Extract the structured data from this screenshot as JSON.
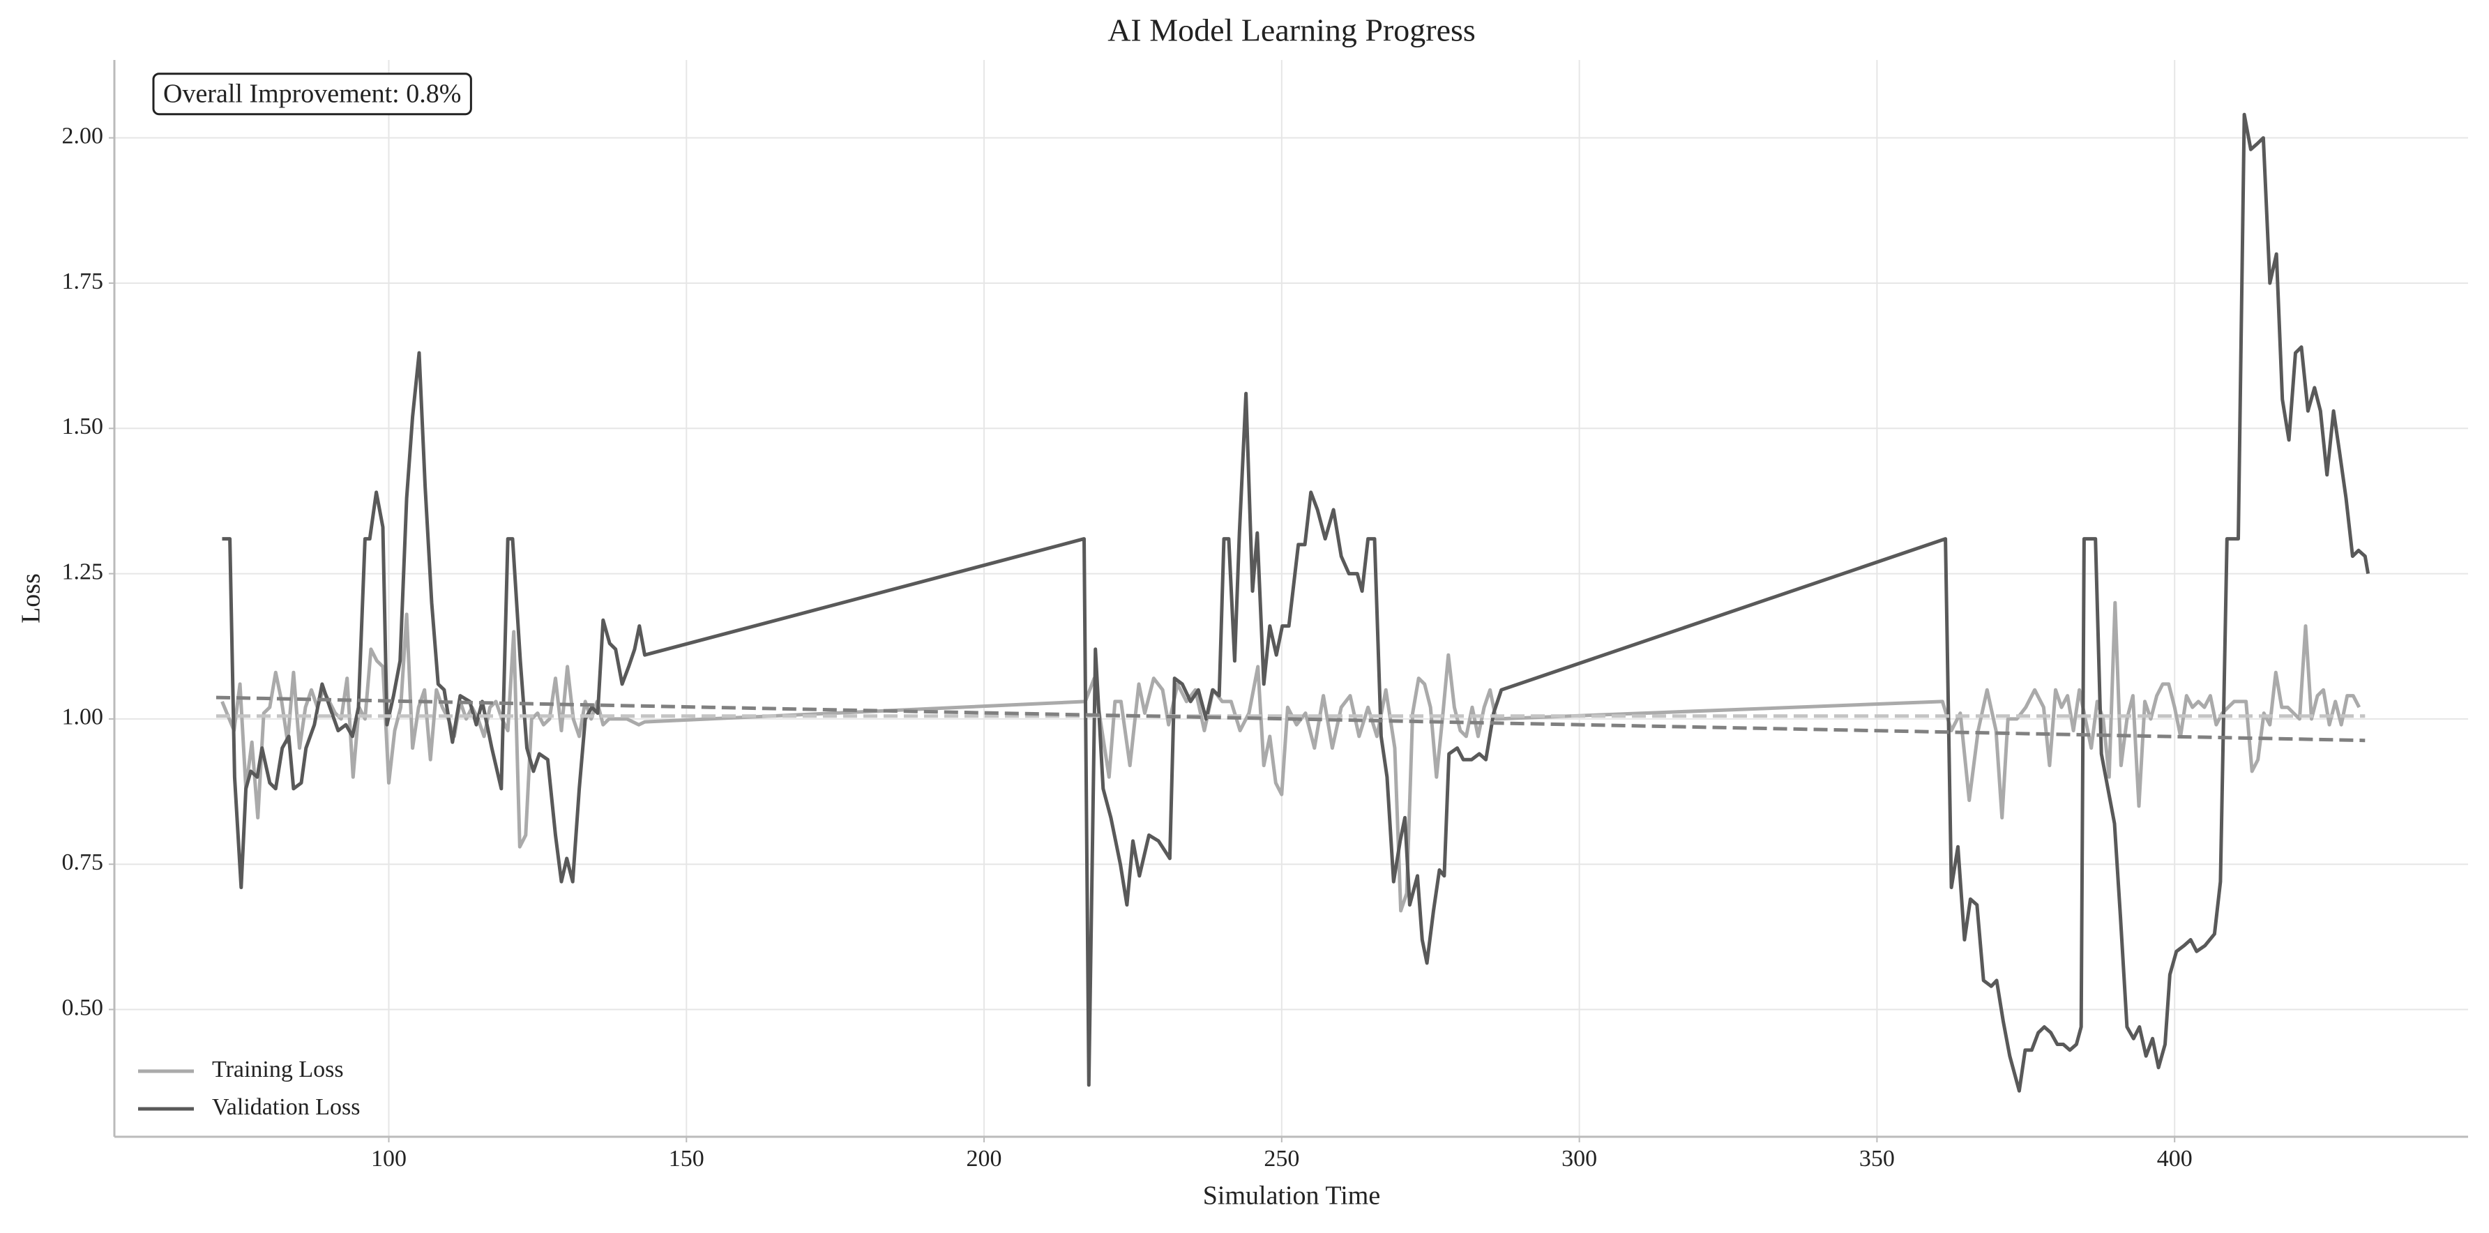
{
  "chart_data": {
    "type": "line",
    "title": "AI Model Learning Progress",
    "xlabel": "Simulation Time",
    "ylabel": "Loss",
    "annotation": "Overall Improvement: 0.8%",
    "xlim": [
      53.9,
      449.3
    ],
    "ylim": [
      0.281,
      2.134
    ],
    "xticks": [
      100,
      150,
      200,
      250,
      300,
      350,
      400
    ],
    "yticks": [
      {
        "value": 0.5,
        "label": "0.50"
      },
      0.75,
      {
        "value": 1.0,
        "label": "1.00"
      },
      1.25,
      {
        "value": 1.5,
        "label": "1.50"
      },
      1.75,
      {
        "value": 2.0,
        "label": "2.00"
      }
    ],
    "grid": true,
    "legend": "lower left",
    "series": [
      {
        "name": "Training Loss",
        "color": "#aaaaaa",
        "x": [
          72,
          74,
          75,
          76,
          77,
          78,
          79,
          80,
          81,
          82,
          83,
          84,
          85,
          86,
          87,
          88,
          89,
          91,
          92,
          93,
          94,
          95,
          96,
          97,
          98,
          99,
          100,
          101,
          102,
          103,
          104,
          105,
          106,
          107,
          108,
          109,
          110,
          111,
          112,
          113,
          114,
          115,
          116,
          117,
          118,
          119,
          120,
          121,
          122,
          123,
          124,
          125,
          126,
          127,
          128,
          129,
          130,
          131,
          132,
          133,
          134,
          135,
          136,
          137,
          140,
          142,
          143,
          217,
          218.5,
          219.5,
          221,
          222,
          223,
          224.5,
          226,
          227,
          228.5,
          230,
          231,
          232.5,
          234,
          235.5,
          237,
          238.5,
          240,
          241.5,
          243,
          244.5,
          246,
          247,
          248,
          249,
          250,
          251,
          252.5,
          254,
          255.5,
          257,
          258.5,
          260,
          261.5,
          263,
          264.5,
          266,
          267.5,
          269,
          270,
          271,
          272,
          273,
          274,
          275,
          276,
          277,
          278,
          279,
          280,
          281,
          282,
          283,
          284,
          285,
          286,
          361,
          362.5,
          364,
          365.5,
          367,
          368.5,
          370,
          371,
          372,
          373.5,
          375,
          376.5,
          378,
          379,
          380,
          381,
          382,
          383,
          384,
          385,
          386,
          387,
          388,
          389,
          390,
          391,
          392,
          393,
          394,
          395,
          396,
          397,
          398,
          399,
          400,
          401,
          402,
          403,
          404,
          405,
          406,
          407,
          408,
          409,
          410,
          411,
          412,
          413,
          414,
          415,
          416,
          417,
          418,
          419,
          420,
          421,
          422,
          423,
          424,
          425,
          426,
          427,
          428,
          429,
          430,
          431
        ],
        "values": [
          1.03,
          0.98,
          1.06,
          0.88,
          0.96,
          0.83,
          1.01,
          1.02,
          1.08,
          1.03,
          0.96,
          1.08,
          0.95,
          1.02,
          1.05,
          1.02,
          1.05,
          1.01,
          1.0,
          1.07,
          0.9,
          1.02,
          1.0,
          1.12,
          1.1,
          1.09,
          0.89,
          0.98,
          1.02,
          1.18,
          0.95,
          1.02,
          1.05,
          0.93,
          1.05,
          1.02,
          1.0,
          0.97,
          1.03,
          1.0,
          1.02,
          1.0,
          0.97,
          1.02,
          1.03,
          1.0,
          0.98,
          1.15,
          0.78,
          0.8,
          1.0,
          1.01,
          0.99,
          1.0,
          1.07,
          0.98,
          1.09,
          1.0,
          0.97,
          1.03,
          1.0,
          1.03,
          0.99,
          1.0,
          1.0,
          0.99,
          0.995,
          1.03,
          1.07,
          1.0,
          0.9,
          1.03,
          1.03,
          0.92,
          1.06,
          1.01,
          1.07,
          1.05,
          0.99,
          1.06,
          1.03,
          1.05,
          0.98,
          1.05,
          1.03,
          1.03,
          0.98,
          1.01,
          1.09,
          0.92,
          0.97,
          0.89,
          0.87,
          1.02,
          0.99,
          1.01,
          0.95,
          1.04,
          0.95,
          1.02,
          1.04,
          0.97,
          1.02,
          0.97,
          1.05,
          0.95,
          0.67,
          0.7,
          1.01,
          1.07,
          1.06,
          1.02,
          0.9,
          1.0,
          1.11,
          1.02,
          0.98,
          0.97,
          1.02,
          0.97,
          1.02,
          1.05,
          1.0,
          1.03,
          0.98,
          1.01,
          0.86,
          0.98,
          1.05,
          0.98,
          0.83,
          1.0,
          1.0,
          1.02,
          1.05,
          1.02,
          0.92,
          1.05,
          1.02,
          1.04,
          0.98,
          1.05,
          1.0,
          0.95,
          1.03,
          1.0,
          0.9,
          1.2,
          0.92,
          1.0,
          1.04,
          0.85,
          1.03,
          1.0,
          1.04,
          1.06,
          1.06,
          1.02,
          0.97,
          1.04,
          1.02,
          1.03,
          1.02,
          1.04,
          0.99,
          1.01,
          1.02,
          1.03,
          1.03,
          1.03,
          0.91,
          0.93,
          1.01,
          0.99,
          1.08,
          1.02,
          1.02,
          1.01,
          1.0,
          1.16,
          1.0,
          1.04,
          1.05,
          0.99,
          1.03,
          0.99,
          1.04,
          1.04,
          1.02
        ]
      },
      {
        "name": "Validation Loss",
        "color": "#595959",
        "x": [
          72,
          73.3,
          74.1,
          75.2,
          76,
          76.8,
          77.9,
          78.7,
          80,
          81,
          82.1,
          83.2,
          84,
          85.3,
          86.1,
          87.5,
          88.8,
          90.1,
          91.5,
          92.8,
          93.9,
          94.9,
          96,
          96.8,
          97.9,
          99,
          99.7,
          100.8,
          101.9,
          103,
          104,
          105.1,
          106.1,
          107.2,
          108.3,
          109.3,
          110.7,
          112,
          113.6,
          114.7,
          115.7,
          117.3,
          118.9,
          120,
          120.8,
          122.1,
          123.2,
          124.3,
          125.3,
          126.7,
          128,
          129,
          129.9,
          130.9,
          132,
          133,
          134.1,
          135.1,
          136,
          137.1,
          138.1,
          139.2,
          140.3,
          141.3,
          142.1,
          143,
          216.8,
          217.6,
          218.7,
          220,
          221.3,
          222.9,
          224,
          225,
          226.1,
          227.7,
          229.3,
          231.2,
          232,
          233.3,
          234.7,
          236,
          237.3,
          238.4,
          239.5,
          240.3,
          241.1,
          242.1,
          242.9,
          244,
          245.1,
          245.9,
          247,
          248,
          249.1,
          250.1,
          251.2,
          252.8,
          253.9,
          254.9,
          256,
          257.3,
          258.7,
          260,
          261.3,
          262.7,
          263.5,
          264.5,
          265.6,
          266.7,
          267.7,
          268.8,
          269.9,
          270.7,
          271.5,
          272.8,
          273.6,
          274.4,
          275.5,
          276.5,
          277.3,
          278.1,
          279.5,
          280.5,
          281.9,
          283.2,
          284.3,
          285.6,
          286.9,
          361.5,
          362.5,
          363.6,
          364.7,
          365.7,
          366.8,
          367.9,
          369.2,
          370.1,
          371.2,
          372.3,
          373.9,
          374.9,
          376,
          377.1,
          378.1,
          379.2,
          380.3,
          381.3,
          382.4,
          383.5,
          384.3,
          384.8,
          386.7,
          387.7,
          388.8,
          389.9,
          390.9,
          392,
          393.1,
          394.1,
          395.2,
          396.3,
          397.3,
          398.4,
          399.2,
          400.3,
          401.6,
          402.7,
          403.7,
          405.1,
          406.7,
          407.7,
          408.8,
          410.7,
          411.7,
          412.8,
          413.9,
          414.9,
          416,
          417.1,
          418.1,
          419.2,
          420.3,
          421.3,
          422.4,
          423.5,
          424.5,
          425.6,
          426.7,
          427.7,
          428.8,
          429.9,
          430.9,
          432,
          432.5
        ],
        "values": [
          1.31,
          1.31,
          0.9,
          0.71,
          0.88,
          0.91,
          0.9,
          0.95,
          0.89,
          0.88,
          0.95,
          0.97,
          0.88,
          0.89,
          0.95,
          0.99,
          1.06,
          1.02,
          0.98,
          0.99,
          0.97,
          1.02,
          1.31,
          1.31,
          1.39,
          1.33,
          0.99,
          1.04,
          1.1,
          1.38,
          1.52,
          1.63,
          1.4,
          1.2,
          1.06,
          1.05,
          0.96,
          1.04,
          1.03,
          0.99,
          1.03,
          0.95,
          0.88,
          1.31,
          1.31,
          1.1,
          0.95,
          0.91,
          0.94,
          0.93,
          0.8,
          0.72,
          0.76,
          0.72,
          0.88,
          1.0,
          1.02,
          1.01,
          1.17,
          1.13,
          1.12,
          1.06,
          1.09,
          1.12,
          1.16,
          1.11,
          1.31,
          0.37,
          1.12,
          0.88,
          0.83,
          0.75,
          0.68,
          0.79,
          0.73,
          0.8,
          0.79,
          0.76,
          1.07,
          1.06,
          1.03,
          1.05,
          1.0,
          1.05,
          1.04,
          1.31,
          1.31,
          1.1,
          1.32,
          1.56,
          1.22,
          1.32,
          1.06,
          1.16,
          1.11,
          1.16,
          1.16,
          1.3,
          1.3,
          1.39,
          1.36,
          1.31,
          1.36,
          1.28,
          1.25,
          1.25,
          1.22,
          1.31,
          1.31,
          0.97,
          0.9,
          0.72,
          0.79,
          0.83,
          0.68,
          0.73,
          0.62,
          0.58,
          0.67,
          0.74,
          0.73,
          0.94,
          0.95,
          0.93,
          0.93,
          0.94,
          0.93,
          1.01,
          1.05,
          1.31,
          0.71,
          0.78,
          0.62,
          0.69,
          0.68,
          0.55,
          0.54,
          0.55,
          0.48,
          0.42,
          0.36,
          0.43,
          0.43,
          0.46,
          0.47,
          0.46,
          0.44,
          0.44,
          0.43,
          0.44,
          0.47,
          1.31,
          1.31,
          0.94,
          0.88,
          0.82,
          0.66,
          0.47,
          0.45,
          0.47,
          0.42,
          0.45,
          0.4,
          0.44,
          0.56,
          0.6,
          0.61,
          0.62,
          0.6,
          0.61,
          0.63,
          0.72,
          1.31,
          1.31,
          2.04,
          1.98,
          1.99,
          2.0,
          1.75,
          1.8,
          1.55,
          1.48,
          1.63,
          1.64,
          1.53,
          1.57,
          1.53,
          1.42,
          1.53,
          1.46,
          1.38,
          1.28,
          1.29,
          1.28,
          1.25
        ]
      }
    ],
    "trend_lines": [
      {
        "color": "#c4c4c4",
        "dash": true,
        "x": [
          71,
          432
        ],
        "values": [
          1.005,
          1.005
        ]
      },
      {
        "color": "#808080",
        "dash": true,
        "x": [
          71,
          432
        ],
        "values": [
          1.037,
          0.963
        ]
      }
    ]
  }
}
